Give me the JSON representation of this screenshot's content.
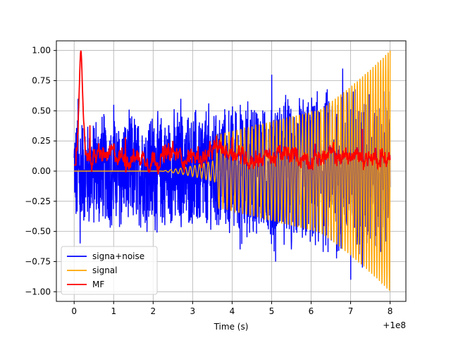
{
  "chart_data": {
    "type": "line",
    "xlabel": "Time (s)",
    "ylabel": "",
    "x_offset_label": "+1e8",
    "xlim": [
      -0.45,
      8.4
    ],
    "ylim": [
      -1.08,
      1.08
    ],
    "x_ticks": [
      0,
      1,
      2,
      3,
      4,
      5,
      6,
      7,
      8
    ],
    "x_tick_labels": [
      "0",
      "1",
      "2",
      "3",
      "4",
      "5",
      "6",
      "7",
      "8"
    ],
    "y_ticks": [
      -1.0,
      -0.75,
      -0.5,
      -0.25,
      0.0,
      0.25,
      0.5,
      0.75,
      1.0
    ],
    "y_tick_labels": [
      "−1.00",
      "−0.75",
      "−0.50",
      "−0.25",
      "0.00",
      "0.25",
      "0.50",
      "0.75",
      "1.00"
    ],
    "grid": true,
    "legend_position": "lower-left",
    "series": [
      {
        "name": "signa+noise",
        "color": "#0000ff",
        "x_range": [
          0,
          8
        ],
        "envelope": [
          [
            0,
            0.45
          ],
          [
            1,
            0.45
          ],
          [
            2,
            0.45
          ],
          [
            3,
            0.5
          ],
          [
            4,
            0.55
          ],
          [
            5,
            0.6
          ],
          [
            6,
            0.65
          ],
          [
            7,
            0.7
          ],
          [
            8,
            0.7
          ]
        ],
        "peaks": [
          [
            0.1,
            0.6
          ],
          [
            0.15,
            -0.6
          ],
          [
            0.95,
            -0.45
          ],
          [
            1.0,
            0.55
          ],
          [
            2.7,
            0.6
          ],
          [
            4.2,
            -0.65
          ],
          [
            5.0,
            0.8
          ],
          [
            5.1,
            -0.75
          ],
          [
            5.5,
            -0.65
          ],
          [
            6.8,
            0.85
          ],
          [
            7.0,
            -0.9
          ],
          [
            7.3,
            -0.8
          ],
          [
            7.5,
            0.75
          ]
        ]
      },
      {
        "name": "signal",
        "color": "#ffa500",
        "x_range": [
          0,
          8
        ],
        "onset": 2.2,
        "max_amplitude": 1.0,
        "end_value": 1.0
      },
      {
        "name": "MF",
        "color": "#ff0000",
        "x_range": [
          0,
          8
        ],
        "peak": [
          0.17,
          1.0
        ],
        "baseline": 0.12,
        "variation": 0.08
      }
    ]
  }
}
